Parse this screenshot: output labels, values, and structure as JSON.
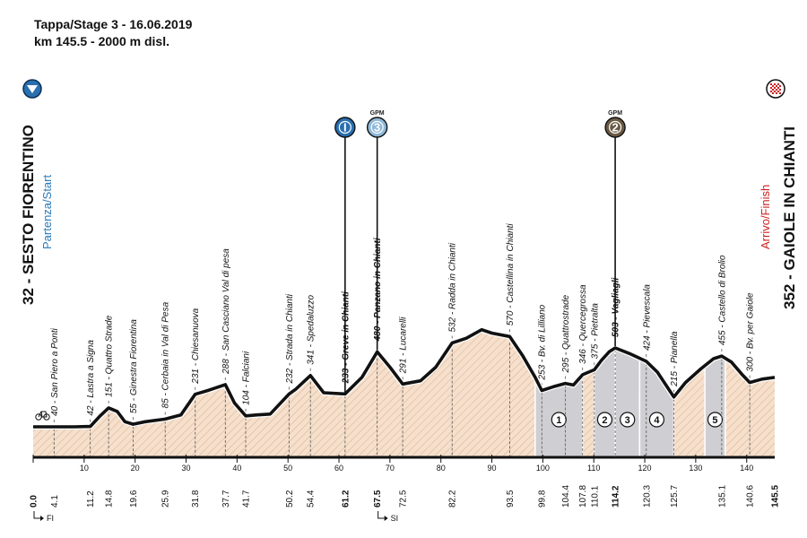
{
  "header": {
    "title": "Tappa/Stage 3 - 16.06.2019",
    "subtitle": "km 145.5 - 2000 m disl."
  },
  "start": {
    "name": "32 - SESTO FIORENTINO",
    "label": "Partenza/Start"
  },
  "finish": {
    "name": "352 - GAIOLE IN CHIANTI",
    "label": "Arrivo/Finish"
  },
  "colors": {
    "fill": "#f6e0cc",
    "hatch": "#d9b59a",
    "segment": "#cfcfd3",
    "line": "#111111",
    "start_badge": "#2a6fb0",
    "sprint_badge": "#2a6fb0",
    "gpm3_badge": "#8fb8d9",
    "gpm2_badge": "#6b5a44"
  },
  "chart_data": {
    "type": "area",
    "title": "Tappa/Stage 3 - 16.06.2019",
    "subtitle": "km 145.5 - 2000 m disl.",
    "xlabel": "",
    "ylabel": "",
    "xlim": [
      0,
      145.5
    ],
    "ylim": [
      0,
      620
    ],
    "grid": false,
    "x": [
      0,
      4.1,
      8,
      11.2,
      13,
      14.8,
      16.5,
      18,
      19.6,
      22,
      25.9,
      29,
      31.8,
      34.5,
      37.7,
      39.5,
      41.7,
      44,
      46.5,
      50.2,
      51.5,
      54.4,
      57,
      61.2,
      64.5,
      67.5,
      70,
      72.5,
      76,
      79,
      82.2,
      85,
      88,
      90,
      93.5,
      96,
      98.5,
      99.8,
      102,
      104.4,
      106,
      107.8,
      110.1,
      111.5,
      113,
      114.2,
      117,
      120.3,
      122.5,
      125.7,
      128,
      131,
      133.5,
      135.1,
      137,
      139,
      140.6,
      143,
      145.5
    ],
    "y": [
      40,
      40,
      40,
      42,
      100,
      151,
      130,
      70,
      55,
      70,
      85,
      110,
      231,
      255,
      288,
      180,
      104,
      110,
      115,
      232,
      260,
      341,
      240,
      233,
      330,
      480,
      390,
      291,
      310,
      390,
      532,
      560,
      610,
      590,
      570,
      460,
      330,
      253,
      275,
      295,
      285,
      346,
      375,
      430,
      480,
      503,
      470,
      424,
      360,
      215,
      300,
      380,
      440,
      455,
      420,
      350,
      300,
      320,
      330
    ],
    "key_points": [
      {
        "km": "0.0",
        "name": "",
        "bold": true
      },
      {
        "km": "4.1",
        "name": "40 - San Piero a Ponti"
      },
      {
        "km": "11.2",
        "name": "42 - Lastra a Signa"
      },
      {
        "km": "14.8",
        "name": "151 - Quattro Strade"
      },
      {
        "km": "19.6",
        "name": "55 - Ginestra Fiorentina"
      },
      {
        "km": "25.9",
        "name": "85 - Cerbaia in Val di Pesa"
      },
      {
        "km": "31.8",
        "name": "231 - Chiesanuova"
      },
      {
        "km": "37.7",
        "name": "288 - San Casciano Val di pesa"
      },
      {
        "km": "41.7",
        "name": "104 - Falciani"
      },
      {
        "km": "50.2",
        "name": "232 - Strada in Chianti"
      },
      {
        "km": "54.4",
        "name": "341 - Spedaluzzo"
      },
      {
        "km": "61.2",
        "name": "233 - Greve in Chianti",
        "bold": true
      },
      {
        "km": "67.5",
        "name": "480 - Panzano in Chianti",
        "bold": true
      },
      {
        "km": "72.5",
        "name": "291 - Lucarelli"
      },
      {
        "km": "82.2",
        "name": "532 - Radda in Chianti"
      },
      {
        "km": "93.5",
        "name": "570 - Castellina in Chianti"
      },
      {
        "km": "99.8",
        "name": "253 - Bv. di Lilliano"
      },
      {
        "km": "104.4",
        "name": "295 - Quattrostrade"
      },
      {
        "km": "107.8",
        "name": "346 - Quercegrossa"
      },
      {
        "km": "110.1",
        "name": "375 - Pietralta"
      },
      {
        "km": "114.2",
        "name": "503 - Vagliagli",
        "bold": true
      },
      {
        "km": "120.3",
        "name": "424 - Pievescala"
      },
      {
        "km": "125.7",
        "name": "215 - Pianella"
      },
      {
        "km": "135.1",
        "name": "455 - Castello di Brolio"
      },
      {
        "km": "140.6",
        "name": "300 - Bv. per Gaiole"
      },
      {
        "km": "145.5",
        "name": "",
        "bold": true
      }
    ],
    "axis_ticks": [
      "10",
      "20",
      "30",
      "40",
      "50",
      "60",
      "70",
      "80",
      "90",
      "100",
      "110",
      "120",
      "130",
      "140"
    ],
    "axis_tick_values": [
      10,
      20,
      30,
      40,
      50,
      60,
      70,
      80,
      90,
      100,
      110,
      120,
      130,
      140
    ],
    "segments": [
      {
        "label": "1",
        "from": 98.5,
        "to": 107.8
      },
      {
        "label": "2",
        "from": 110.1,
        "to": 114.2
      },
      {
        "label": "3",
        "from": 114.2,
        "to": 119
      },
      {
        "label": "4",
        "from": 119,
        "to": 125.7
      },
      {
        "label": "5",
        "from": 131.8,
        "to": 135.8
      }
    ],
    "markers": [
      {
        "km": 61.2,
        "badge": "I",
        "tag": "",
        "color": "#2a6fb0"
      },
      {
        "km": 67.5,
        "badge": "3",
        "tag": "GPM",
        "color": "#8fb8d9"
      },
      {
        "km": 114.2,
        "badge": "2",
        "tag": "GPM",
        "color": "#6b5a44"
      }
    ],
    "directions": [
      {
        "km": 0.0,
        "label": "FI"
      },
      {
        "km": 67.5,
        "label": "SI"
      }
    ]
  }
}
